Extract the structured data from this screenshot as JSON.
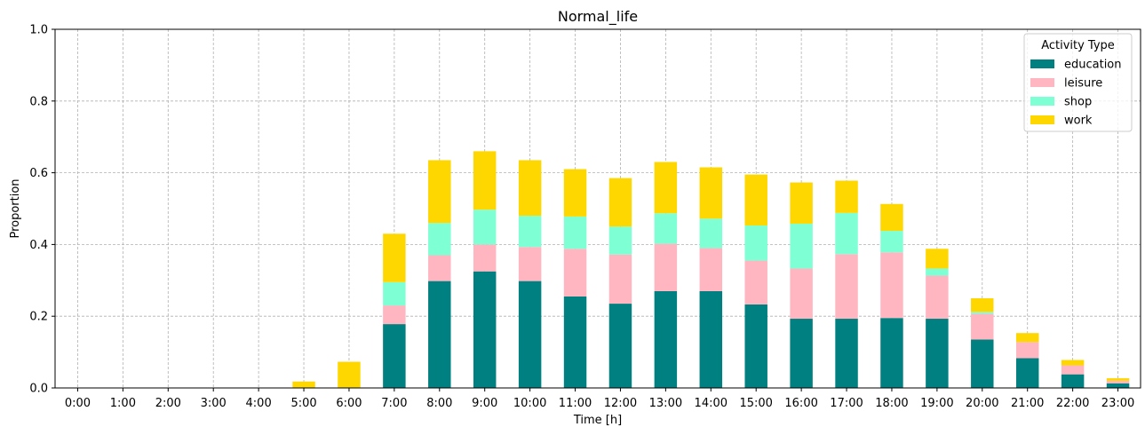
{
  "chart_data": {
    "type": "bar",
    "stacked": true,
    "title": "Normal_life",
    "xlabel": "Time [h]",
    "ylabel": "Proportion",
    "ylim": [
      0,
      1
    ],
    "yticks": [
      "0.0",
      "0.2",
      "0.4",
      "0.6",
      "0.8",
      "1.0"
    ],
    "grid": true,
    "legend": {
      "title": "Activity Type",
      "placement": "top-right"
    },
    "categories": [
      "0:00",
      "1:00",
      "2:00",
      "3:00",
      "4:00",
      "5:00",
      "6:00",
      "7:00",
      "8:00",
      "9:00",
      "10:00",
      "11:00",
      "12:00",
      "13:00",
      "14:00",
      "15:00",
      "16:00",
      "17:00",
      "18:00",
      "19:00",
      "20:00",
      "21:00",
      "22:00",
      "23:00"
    ],
    "series": [
      {
        "name": "education",
        "color": "#008080",
        "values": [
          0,
          0,
          0,
          0,
          0,
          0,
          0,
          0.178,
          0.298,
          0.325,
          0.298,
          0.255,
          0.235,
          0.27,
          0.27,
          0.233,
          0.193,
          0.193,
          0.195,
          0.193,
          0.135,
          0.083,
          0.038,
          0.013
        ]
      },
      {
        "name": "leisure",
        "color": "#ffb6c1",
        "values": [
          0,
          0,
          0,
          0,
          0,
          0,
          0,
          0.052,
          0.072,
          0.075,
          0.095,
          0.133,
          0.137,
          0.132,
          0.12,
          0.122,
          0.14,
          0.18,
          0.183,
          0.12,
          0.072,
          0.045,
          0.025,
          0.007
        ]
      },
      {
        "name": "shop",
        "color": "#7fffd4",
        "values": [
          0,
          0,
          0,
          0,
          0,
          0,
          0,
          0.065,
          0.09,
          0.097,
          0.087,
          0.09,
          0.078,
          0.085,
          0.082,
          0.098,
          0.125,
          0.115,
          0.06,
          0.02,
          0.005,
          0.0,
          0.0,
          0.0
        ]
      },
      {
        "name": "work",
        "color": "#ffd700",
        "values": [
          0,
          0,
          0,
          0,
          0,
          0.018,
          0.073,
          0.135,
          0.175,
          0.163,
          0.155,
          0.132,
          0.135,
          0.143,
          0.143,
          0.142,
          0.115,
          0.09,
          0.075,
          0.055,
          0.038,
          0.025,
          0.015,
          0.007
        ]
      }
    ]
  }
}
